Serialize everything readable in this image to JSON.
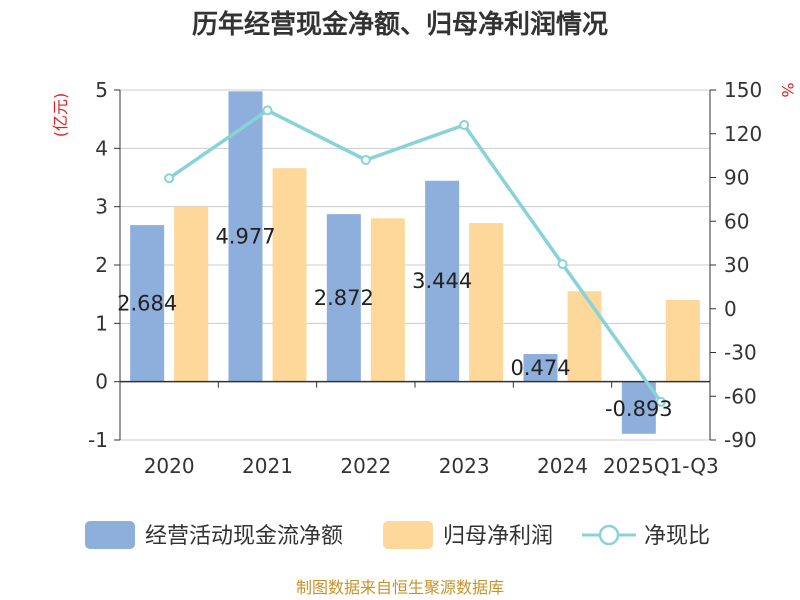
{
  "colors": {
    "cash_flow": "#8eaedb",
    "net_profit": "#fdd89a",
    "ratio": "#88d3d8",
    "unit_left": "#e02020",
    "unit_right": "#e02020",
    "grid": "#cccccc",
    "axis": "#333333",
    "source": "#c8922a"
  },
  "chart_data": {
    "type": "bar",
    "title": "历年经营现金净额、归母净利润情况",
    "categories": [
      "2020",
      "2021",
      "2022",
      "2023",
      "2024",
      "2025Q1-Q3"
    ],
    "y_left": {
      "unit": "(亿元)",
      "min": -1,
      "max": 5,
      "ticks": [
        "-1",
        "0",
        "1",
        "2",
        "3",
        "4",
        "5"
      ]
    },
    "y_right": {
      "unit": "%",
      "min": -90,
      "max": 150,
      "ticks": [
        "-90",
        "-60",
        "-30",
        "0",
        "30",
        "60",
        "90",
        "120",
        "150"
      ]
    },
    "series": [
      {
        "name": "经营活动现金流净额",
        "axis": "left",
        "kind": "bar",
        "values": [
          2.684,
          4.977,
          2.872,
          3.444,
          0.474,
          -0.893
        ],
        "labels": [
          "2.684",
          "4.977",
          "2.872",
          "3.444",
          "0.474",
          "-0.893"
        ]
      },
      {
        "name": "归母净利润",
        "axis": "left",
        "kind": "bar",
        "values": [
          3.0,
          3.66,
          2.8,
          2.72,
          1.55,
          1.4
        ]
      },
      {
        "name": "净现比",
        "axis": "right",
        "kind": "line",
        "values": [
          89.5,
          136,
          102,
          126,
          30.6,
          -63.8
        ]
      }
    ],
    "legend": {
      "position": "bottom",
      "items": [
        "经营活动现金流净额",
        "归母净利润",
        "净现比"
      ]
    }
  },
  "source": "制图数据来自恒生聚源数据库"
}
